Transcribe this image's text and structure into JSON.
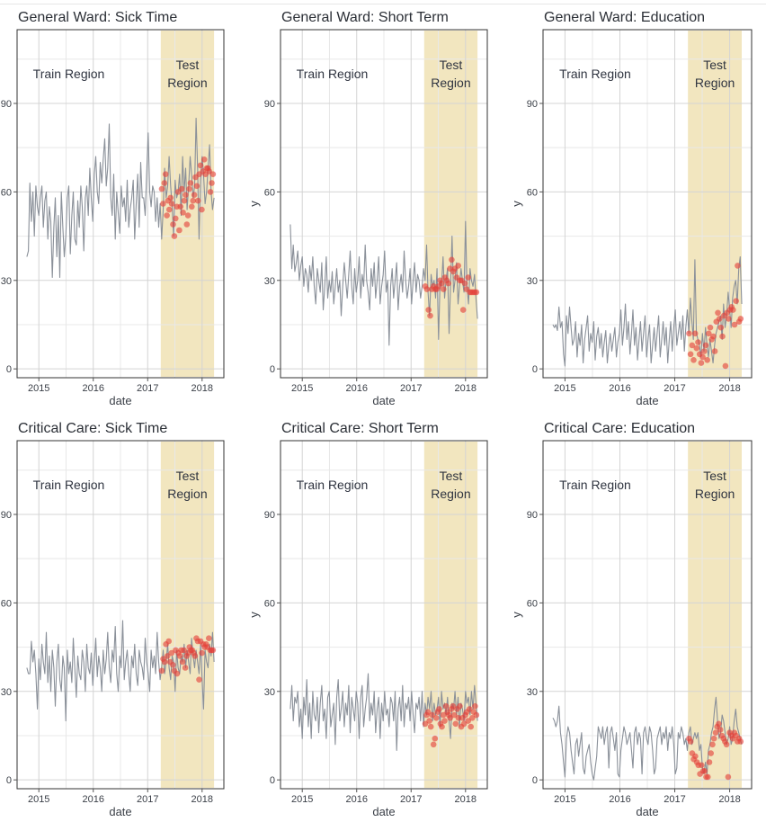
{
  "colors": {
    "test_region_fill": "#f2e6bf",
    "series_line": "#8a9099",
    "prediction_points": "#e3403a",
    "grid": "#d4d4d4",
    "panel_border": "#333333"
  },
  "panel_text": {
    "train_region": "Train Region",
    "test_region_line1": "Test",
    "test_region_line2": "Region",
    "xlabel": "date"
  },
  "chart_data": [
    {
      "type": "line",
      "title": "General Ward: Sick Time",
      "xlabel": "date",
      "ylabel": "",
      "xlim": [
        2014.6,
        2018.4
      ],
      "ylim": [
        -3,
        115
      ],
      "x_ticks": [
        "2015",
        "2016",
        "2017",
        "2018"
      ],
      "y_ticks": [
        "0",
        "30",
        "60",
        "90"
      ],
      "test_region": [
        2017.24,
        2018.22
      ],
      "series": [
        {
          "y": [
            38,
            40,
            63,
            50,
            60,
            45,
            62,
            55,
            52,
            58,
            62,
            48,
            57,
            60,
            44,
            55,
            50,
            31,
            48,
            58,
            38,
            52,
            31,
            60,
            48,
            38,
            45,
            58,
            62,
            39,
            52,
            60,
            44,
            42,
            57,
            48,
            62,
            55,
            40,
            58,
            62,
            52,
            68,
            58,
            50,
            66,
            72,
            60,
            56,
            70,
            63,
            71,
            78,
            62,
            68,
            83,
            58,
            52,
            66,
            44,
            60,
            53,
            46,
            62,
            55,
            58,
            50,
            64,
            48,
            54,
            58,
            64,
            44,
            56,
            66,
            48,
            70,
            58,
            58,
            52,
            66,
            80,
            60,
            55,
            62,
            60,
            50,
            58,
            48,
            56,
            44,
            54,
            68,
            58,
            62,
            72,
            62,
            55,
            45,
            64,
            58,
            60,
            66,
            52,
            72,
            60,
            68,
            54,
            62,
            72,
            66,
            58,
            62,
            85,
            68,
            44,
            64,
            72,
            66,
            56,
            60,
            68,
            76,
            60,
            54,
            58
          ]
        },
        {
          "y": [
            61,
            56,
            63,
            66,
            52,
            57,
            54,
            58,
            56,
            49,
            45,
            51,
            55,
            60,
            47,
            55,
            61,
            53,
            57,
            59,
            49,
            52,
            61,
            63,
            55,
            57,
            59,
            65,
            62,
            57,
            66,
            69,
            54,
            67,
            71,
            66,
            68,
            68,
            67,
            60,
            63,
            66
          ]
        }
      ]
    },
    {
      "type": "line",
      "title": "General Ward: Short Term",
      "xlabel": "date",
      "ylabel": "y",
      "xlim": [
        2014.6,
        2018.4
      ],
      "ylim": [
        -3,
        115
      ],
      "x_ticks": [
        "2015",
        "2016",
        "2017",
        "2018"
      ],
      "y_ticks": [
        "0",
        "30",
        "60",
        "90"
      ],
      "test_region": [
        2017.24,
        2018.22
      ],
      "series": [
        {
          "y": [
            49,
            34,
            42,
            33,
            36,
            40,
            30,
            35,
            38,
            28,
            34,
            32,
            26,
            35,
            30,
            38,
            28,
            22,
            34,
            30,
            26,
            36,
            20,
            28,
            38,
            24,
            30,
            26,
            33,
            22,
            28,
            34,
            26,
            30,
            18,
            28,
            36,
            30,
            24,
            32,
            40,
            28,
            22,
            34,
            26,
            30,
            38,
            24,
            32,
            28,
            42,
            30,
            26,
            20,
            34,
            28,
            36,
            24,
            30,
            38,
            22,
            28,
            32,
            40,
            26,
            30,
            8,
            28,
            34,
            24,
            30,
            36,
            20,
            28,
            32,
            26,
            40,
            30,
            24,
            28,
            34,
            22,
            30,
            36,
            26,
            32,
            30,
            24,
            28,
            34,
            30,
            42,
            26,
            18,
            32,
            28,
            30,
            24,
            34,
            10,
            30,
            28,
            38,
            24,
            30,
            34,
            12,
            28,
            45,
            26,
            30,
            36,
            22,
            28,
            34,
            30,
            26,
            50,
            28,
            22,
            34,
            30,
            28,
            32,
            24,
            17
          ]
        },
        {
          "y": [
            28,
            27,
            20,
            18,
            27,
            28,
            27,
            27,
            28,
            30,
            29,
            27,
            31,
            30,
            29,
            34,
            37,
            33,
            34,
            31,
            35,
            30,
            30,
            20,
            29,
            27,
            31,
            26,
            26,
            26,
            26,
            26
          ]
        }
      ]
    },
    {
      "type": "line",
      "title": "General Ward: Education",
      "xlabel": "date",
      "ylabel": "y",
      "xlim": [
        2014.6,
        2018.4
      ],
      "ylim": [
        -3,
        115
      ],
      "x_ticks": [
        "2015",
        "2016",
        "2017",
        "2018"
      ],
      "y_ticks": [
        "0",
        "30",
        "60",
        "90"
      ],
      "test_region": [
        2017.24,
        2018.22
      ],
      "series": [
        {
          "y": [
            15,
            14,
            15,
            13,
            21,
            14,
            16,
            5,
            1,
            18,
            12,
            21,
            14,
            8,
            10,
            16,
            4,
            12,
            8,
            15,
            2,
            10,
            14,
            18,
            6,
            12,
            9,
            16,
            3,
            11,
            14,
            7,
            12,
            4,
            9,
            13,
            2,
            8,
            12,
            6,
            10,
            14,
            4,
            9,
            12,
            20,
            8,
            14,
            22,
            10,
            16,
            5,
            12,
            20,
            8,
            14,
            3,
            10,
            16,
            6,
            12,
            18,
            4,
            10,
            15,
            2,
            8,
            14,
            6,
            12,
            18,
            4,
            10,
            16,
            8,
            14,
            2,
            10,
            16,
            6,
            14,
            20,
            8,
            12,
            16,
            10,
            18,
            6,
            14,
            20,
            12,
            24,
            16,
            10,
            37,
            12,
            10,
            8,
            4,
            12,
            6,
            14,
            8,
            4,
            10,
            6,
            2,
            8,
            12,
            14,
            16,
            18,
            10,
            22,
            14,
            18,
            26,
            20,
            14,
            24,
            28,
            30,
            22,
            34,
            38,
            22
          ]
        },
        {
          "y": [
            12,
            5,
            8,
            3,
            12,
            7,
            9,
            5,
            2,
            4,
            6,
            8,
            3,
            12,
            14,
            10,
            11,
            6,
            16,
            19,
            17,
            14,
            11,
            18,
            1,
            19,
            17,
            20,
            21,
            20,
            15,
            23,
            35,
            16,
            17
          ]
        }
      ]
    },
    {
      "type": "line",
      "title": "Critical Care: Sick Time",
      "xlabel": "date",
      "ylabel": "",
      "xlim": [
        2014.6,
        2018.4
      ],
      "ylim": [
        -3,
        115
      ],
      "x_ticks": [
        "2015",
        "2016",
        "2017",
        "2018"
      ],
      "y_ticks": [
        "0",
        "30",
        "60",
        "90"
      ],
      "test_region": [
        2017.24,
        2018.22
      ],
      "series": [
        {
          "y": [
            38,
            36,
            36,
            47,
            40,
            44,
            36,
            24,
            41,
            34,
            46,
            40,
            36,
            50,
            33,
            42,
            30,
            44,
            38,
            25,
            40,
            46,
            34,
            30,
            42,
            38,
            20,
            44,
            36,
            40,
            33,
            48,
            38,
            28,
            42,
            36,
            34,
            44,
            40,
            30,
            46,
            38,
            36,
            43,
            32,
            40,
            48,
            35,
            42,
            38,
            30,
            44,
            36,
            41,
            50,
            38,
            33,
            44,
            40,
            52,
            36,
            30,
            42,
            38,
            54,
            34,
            40,
            44,
            36,
            30,
            42,
            38,
            46,
            36,
            32,
            44,
            40,
            38,
            34,
            48,
            40,
            36,
            30,
            44,
            38,
            42,
            36,
            50,
            40,
            34,
            38,
            44,
            36,
            40,
            46,
            38,
            34,
            42,
            40,
            30,
            44,
            38,
            36,
            42,
            40,
            46,
            38,
            44,
            40,
            36,
            48,
            42,
            38,
            44,
            40,
            36,
            46,
            34,
            24,
            44,
            40,
            38,
            46,
            42,
            50,
            40
          ]
        },
        {
          "y": [
            37,
            41,
            40,
            46,
            42,
            47,
            40,
            43,
            39,
            37,
            44,
            36,
            43,
            42,
            44,
            40,
            44,
            38,
            42,
            43,
            45,
            44,
            44,
            43,
            42,
            48,
            47,
            34,
            47,
            43,
            46,
            45,
            46,
            45,
            48,
            44,
            44,
            44
          ]
        }
      ]
    },
    {
      "type": "line",
      "title": "Critical Care: Short Term",
      "xlabel": "date",
      "ylabel": "y",
      "xlim": [
        2014.6,
        2018.4
      ],
      "ylim": [
        -3,
        115
      ],
      "x_ticks": [
        "2015",
        "2016",
        "2017",
        "2018"
      ],
      "y_ticks": [
        "0",
        "30",
        "60",
        "90"
      ],
      "test_region": [
        2017.24,
        2018.22
      ],
      "series": [
        {
          "y": [
            24,
            32,
            20,
            28,
            26,
            30,
            18,
            24,
            14,
            28,
            22,
            34,
            18,
            26,
            14,
            30,
            22,
            20,
            28,
            16,
            26,
            32,
            20,
            24,
            14,
            28,
            30,
            18,
            22,
            26,
            12,
            28,
            34,
            20,
            24,
            30,
            18,
            26,
            22,
            32,
            16,
            28,
            24,
            20,
            30,
            26,
            14,
            28,
            32,
            18,
            24,
            28,
            36,
            20,
            26,
            22,
            30,
            16,
            24,
            28,
            14,
            26,
            20,
            30,
            22,
            24,
            18,
            28,
            26,
            20,
            30,
            10,
            24,
            28,
            20,
            32,
            18,
            26,
            24,
            28,
            20,
            30,
            22,
            16,
            26,
            24,
            28,
            20,
            30,
            18,
            26,
            22,
            28,
            24,
            30,
            20,
            26,
            22,
            24,
            28,
            18,
            30,
            24,
            26,
            22,
            28,
            20,
            14,
            26,
            24,
            30,
            22,
            28,
            18,
            26,
            24,
            20,
            30,
            26,
            28,
            22,
            30,
            24,
            32,
            26,
            20
          ]
        },
        {
          "y": [
            19,
            22,
            23,
            20,
            18,
            22,
            12,
            14,
            21,
            23,
            24,
            19,
            18,
            22,
            20,
            25,
            23,
            22,
            21,
            24,
            25,
            22,
            19,
            24,
            21,
            25,
            18,
            21,
            19,
            22,
            23,
            20,
            24,
            18,
            21,
            23,
            25,
            22
          ]
        }
      ]
    },
    {
      "type": "line",
      "title": "Critical Care: Education",
      "xlabel": "date",
      "ylabel": "y",
      "xlim": [
        2014.6,
        2018.4
      ],
      "ylim": [
        -3,
        115
      ],
      "x_ticks": [
        "2015",
        "2016",
        "2017",
        "2018"
      ],
      "y_ticks": [
        "0",
        "30",
        "60",
        "90"
      ],
      "test_region": [
        2017.24,
        2018.22
      ],
      "series": [
        {
          "y": [
            21,
            20,
            18,
            20,
            25,
            16,
            12,
            6,
            1,
            14,
            18,
            16,
            10,
            6,
            2,
            12,
            14,
            8,
            12,
            16,
            4,
            2,
            8,
            10,
            12,
            6,
            2,
            0,
            4,
            8,
            18,
            16,
            14,
            18,
            12,
            16,
            18,
            4,
            16,
            18,
            14,
            10,
            16,
            2,
            1,
            10,
            14,
            18,
            16,
            12,
            14,
            16,
            10,
            4,
            16,
            18,
            12,
            16,
            14,
            2,
            16,
            18,
            14,
            12,
            18,
            16,
            10,
            2,
            4,
            14,
            16,
            18,
            12,
            16,
            14,
            18,
            10,
            16,
            14,
            18,
            12,
            2,
            4,
            16,
            14,
            18,
            16,
            12,
            14,
            10,
            16,
            18,
            12,
            14,
            16,
            14,
            16,
            10,
            12,
            4,
            2,
            6,
            2,
            10,
            12,
            16,
            18,
            24,
            28,
            20,
            14,
            16,
            22,
            20,
            16,
            12,
            14,
            18,
            12,
            14,
            20,
            24,
            18,
            16,
            14,
            12
          ]
        },
        {
          "y": [
            14,
            13,
            9,
            7,
            8,
            6,
            5,
            2,
            5,
            3,
            3,
            1,
            1,
            6,
            9,
            12,
            14,
            16,
            18,
            19,
            17,
            15,
            14,
            13,
            12,
            1,
            16,
            15,
            14,
            16,
            15,
            13,
            14,
            13
          ]
        }
      ]
    }
  ]
}
